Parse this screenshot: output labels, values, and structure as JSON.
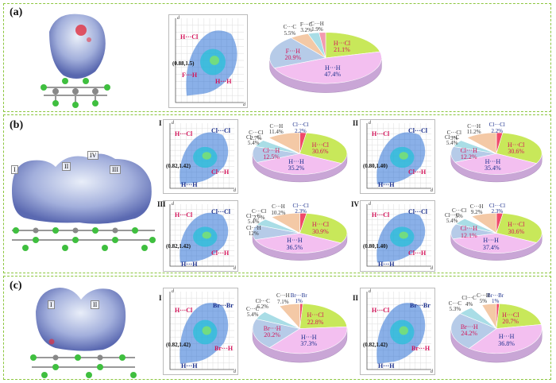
{
  "panels": {
    "a": {
      "label": "(a)"
    },
    "b": {
      "label": "(b)",
      "fragments": [
        "I",
        "II",
        "III",
        "IV"
      ]
    },
    "c": {
      "label": "(c)",
      "fragments": [
        "I",
        "II"
      ]
    }
  },
  "fingerprints": {
    "a": {
      "point": "(0.88,1.5)",
      "labels": [
        "H···Cl",
        "F···H",
        "H···H"
      ]
    },
    "bI": {
      "roman": "I",
      "point": "(0.82,1.42)",
      "labels": [
        "H···Cl",
        "Cl···Cl",
        "Cl···H",
        "H···H"
      ]
    },
    "bII": {
      "roman": "II",
      "point": "(0.80,1.40)",
      "labels": [
        "H···Cl",
        "Cl···Cl",
        "Cl···H",
        "H···H"
      ]
    },
    "bIII": {
      "roman": "III",
      "point": "(0.82,1.42)",
      "labels": [
        "H···Cl",
        "Cl···Cl",
        "Cl···H",
        "H···H"
      ]
    },
    "bIV": {
      "roman": "IV",
      "point": "(0.80,1.40)",
      "labels": [
        "H···Cl",
        "Cl···Cl",
        "Cl···H",
        "H···H"
      ]
    },
    "cI": {
      "roman": "I",
      "point": "(0.82,1.42)",
      "labels": [
        "H···Cl",
        "Br···Br",
        "Br···H",
        "H···H"
      ]
    },
    "cII": {
      "roman": "II",
      "point": "(0.82,1.42)",
      "labels": [
        "H···Cl",
        "Br···Br",
        "Br···H",
        "H···H"
      ]
    }
  },
  "axis": {
    "di": "d",
    "de": "d"
  },
  "chart_data": [
    {
      "type": "pie",
      "id": "a",
      "slices": [
        {
          "label": "H···Cl",
          "value": 21.1,
          "pct": "21.1%",
          "color": "#c8e85a"
        },
        {
          "label": "H···H",
          "value": 47.4,
          "pct": "47.4%",
          "color": "#f3bff0"
        },
        {
          "label": "F···H",
          "value": 20.9,
          "pct": "20.9%",
          "color": "#b6cbe8"
        },
        {
          "label": "C···C",
          "value": 5.5,
          "pct": "5.5%",
          "color": "#f4c9a6"
        },
        {
          "label": "F···C",
          "value": 3.2,
          "pct": "3.2%",
          "color": "#a9dde6"
        },
        {
          "label": "C···H",
          "value": 1.9,
          "pct": "1.9%",
          "color": "#f39ab0"
        }
      ]
    },
    {
      "type": "pie",
      "id": "bI",
      "slices": [
        {
          "label": "Cl···Cl",
          "value": 2.2,
          "pct": "2.2%",
          "color": "#f04a6a"
        },
        {
          "label": "H···Cl",
          "value": 30.6,
          "pct": "30.6%",
          "color": "#c8e85a"
        },
        {
          "label": "H···H",
          "value": 35.2,
          "pct": "35.2%",
          "color": "#f3bff0"
        },
        {
          "label": "Cl···H",
          "value": 12.5,
          "pct": "12.5%",
          "color": "#b6cbe8"
        },
        {
          "label": "Cl···C",
          "value": 5.4,
          "pct": "5.4%",
          "color": "#a9dde6"
        },
        {
          "label": "C···Cl",
          "value": 2.7,
          "pct": "2.7%",
          "color": "#ffffff"
        },
        {
          "label": "C···H",
          "value": 11.4,
          "pct": "11.4%",
          "color": "#f4c9a6"
        }
      ]
    },
    {
      "type": "pie",
      "id": "bII",
      "slices": [
        {
          "label": "Cl···Cl",
          "value": 2.2,
          "pct": "2.2%",
          "color": "#f04a6a"
        },
        {
          "label": "H···Cl",
          "value": 30.6,
          "pct": "30.6%",
          "color": "#c8e85a"
        },
        {
          "label": "H···H",
          "value": 35.4,
          "pct": "35.4%",
          "color": "#f3bff0"
        },
        {
          "label": "Cl···H",
          "value": 12.2,
          "pct": "12.2%",
          "color": "#b6cbe8"
        },
        {
          "label": "Cl···C",
          "value": 5.4,
          "pct": "5.4%",
          "color": "#a9dde6"
        },
        {
          "label": "C···Cl",
          "value": 3,
          "pct": "3%",
          "color": "#ffffff"
        },
        {
          "label": "C···H",
          "value": 11.2,
          "pct": "11.2%",
          "color": "#f4c9a6"
        }
      ]
    },
    {
      "type": "pie",
      "id": "bIII",
      "slices": [
        {
          "label": "Cl···Cl",
          "value": 2.3,
          "pct": "2.3%",
          "color": "#f04a6a"
        },
        {
          "label": "H···Cl",
          "value": 30.9,
          "pct": "30.9%",
          "color": "#c8e85a"
        },
        {
          "label": "H···H",
          "value": 36.5,
          "pct": "36.5%",
          "color": "#f3bff0"
        },
        {
          "label": "Cl···H",
          "value": 12,
          "pct": "12%",
          "color": "#b6cbe8"
        },
        {
          "label": "Cl···C",
          "value": 5.4,
          "pct": "5.4%",
          "color": "#a9dde6"
        },
        {
          "label": "C···Cl",
          "value": 2.7,
          "pct": "2.7%",
          "color": "#ffffff"
        },
        {
          "label": "C···H",
          "value": 10.2,
          "pct": "10.2%",
          "color": "#f4c9a6"
        }
      ]
    },
    {
      "type": "pie",
      "id": "bIV",
      "slices": [
        {
          "label": "Cl···Cl",
          "value": 2.3,
          "pct": "2.3%",
          "color": "#f04a6a"
        },
        {
          "label": "H···Cl",
          "value": 30.6,
          "pct": "30.6%",
          "color": "#c8e85a"
        },
        {
          "label": "H···H",
          "value": 37.4,
          "pct": "37.4%",
          "color": "#f3bff0"
        },
        {
          "label": "Cl···H",
          "value": 12.1,
          "pct": "12.1%",
          "color": "#b6cbe8"
        },
        {
          "label": "Cl···C",
          "value": 5.4,
          "pct": "5.4%",
          "color": "#a9dde6"
        },
        {
          "label": "C···Cl",
          "value": 3,
          "pct": "3%",
          "color": "#ffffff"
        },
        {
          "label": "C···H",
          "value": 9.2,
          "pct": "9.2%",
          "color": "#f4c9a6"
        }
      ]
    },
    {
      "type": "pie",
      "id": "cI",
      "slices": [
        {
          "label": "Br···Br",
          "value": 1,
          "pct": "1%",
          "color": "#f04a6a"
        },
        {
          "label": "H···Cl",
          "value": 22.8,
          "pct": "22.8%",
          "color": "#c8e85a"
        },
        {
          "label": "H···H",
          "value": 37.3,
          "pct": "37.3%",
          "color": "#f3bff0"
        },
        {
          "label": "Br···H",
          "value": 20.2,
          "pct": "20.2%",
          "color": "#b6cbe8"
        },
        {
          "label": "C···C",
          "value": 5.4,
          "pct": "5.4%",
          "color": "#a9dde6"
        },
        {
          "label": "Cl···C",
          "value": 6.2,
          "pct": "6.2%",
          "color": "#ffffff"
        },
        {
          "label": "C···H",
          "value": 7.1,
          "pct": "7.1%",
          "color": "#f4c9a6"
        }
      ]
    },
    {
      "type": "pie",
      "id": "cII",
      "slices": [
        {
          "label": "Br···Br",
          "value": 1,
          "pct": "1%",
          "color": "#f04a6a"
        },
        {
          "label": "H···Cl",
          "value": 20.7,
          "pct": "20.7%",
          "color": "#c8e85a"
        },
        {
          "label": "H···H",
          "value": 36.8,
          "pct": "36.8%",
          "color": "#f3bff0"
        },
        {
          "label": "Br···H",
          "value": 24.2,
          "pct": "24.2%",
          "color": "#b6cbe8"
        },
        {
          "label": "C···C",
          "value": 5.3,
          "pct": "5.3%",
          "color": "#a9dde6"
        },
        {
          "label": "Cl···C",
          "value": 4,
          "pct": "4%",
          "color": "#ffffff"
        },
        {
          "label": "C···H",
          "value": 5,
          "pct": "5%",
          "color": "#f4c9a6"
        }
      ]
    }
  ]
}
